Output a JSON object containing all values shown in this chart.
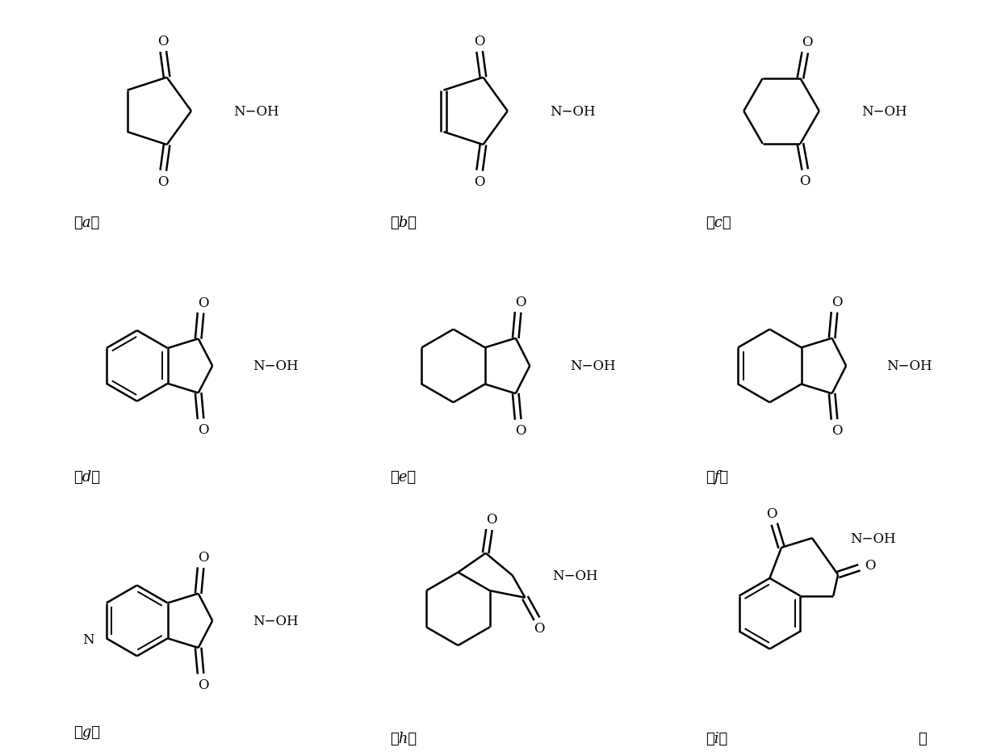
{
  "background": "#ffffff",
  "labels": [
    "（a）",
    "（b）",
    "（c）",
    "（d）",
    "（e）",
    "（f）",
    "（g）",
    "（h）",
    "（i）"
  ],
  "label_note": "。",
  "lw": 1.8,
  "lw_inner": 1.4
}
